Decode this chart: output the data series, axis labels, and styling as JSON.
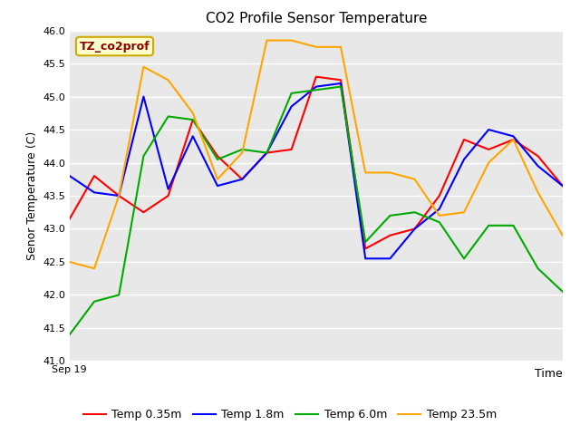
{
  "title": "CO2 Profile Sensor Temperature",
  "ylabel": "Senor Temperature (C)",
  "xlabel": "Time",
  "xlim": [
    0,
    20
  ],
  "ylim": [
    41.0,
    46.0
  ],
  "yticks": [
    41.0,
    41.5,
    42.0,
    42.5,
    43.0,
    43.5,
    44.0,
    44.5,
    45.0,
    45.5,
    46.0
  ],
  "xticklabel": "Sep 19",
  "annotation": "TZ_co2prof",
  "annotation_color": "#8B0000",
  "annotation_bg": "#FFFFCC",
  "annotation_border": "#CCAA00",
  "fig_bg": "#FFFFFF",
  "plot_bg": "#E8E8E8",
  "grid_color": "#FFFFFF",
  "series": {
    "temp_035m": {
      "label": "Temp 0.35m",
      "color": "#FF0000",
      "x": [
        0,
        1,
        2,
        3,
        4,
        5,
        6,
        7,
        8,
        9,
        10,
        11,
        12,
        13,
        14,
        15,
        16,
        17,
        18,
        19,
        20
      ],
      "y": [
        43.15,
        43.8,
        43.5,
        43.25,
        43.5,
        44.65,
        44.1,
        43.75,
        44.15,
        44.2,
        45.3,
        45.25,
        42.7,
        42.9,
        43.0,
        43.5,
        44.35,
        44.2,
        44.35,
        44.1,
        43.65
      ]
    },
    "temp_18m": {
      "label": "Temp 1.8m",
      "color": "#0000FF",
      "x": [
        0,
        1,
        2,
        3,
        4,
        5,
        6,
        7,
        8,
        9,
        10,
        11,
        12,
        13,
        14,
        15,
        16,
        17,
        18,
        19,
        20
      ],
      "y": [
        43.8,
        43.55,
        43.5,
        45.0,
        43.6,
        44.4,
        43.65,
        43.75,
        44.15,
        44.85,
        45.15,
        45.2,
        42.55,
        42.55,
        43.0,
        43.3,
        44.05,
        44.5,
        44.4,
        43.95,
        43.65
      ]
    },
    "temp_60m": {
      "label": "Temp 6.0m",
      "color": "#00AA00",
      "x": [
        0,
        1,
        2,
        3,
        4,
        5,
        6,
        7,
        8,
        9,
        10,
        11,
        12,
        13,
        14,
        15,
        16,
        17,
        18,
        19,
        20
      ],
      "y": [
        41.4,
        41.9,
        42.0,
        44.1,
        44.7,
        44.65,
        44.05,
        44.2,
        44.15,
        45.05,
        45.1,
        45.15,
        42.8,
        43.2,
        43.25,
        43.1,
        42.55,
        43.05,
        43.05,
        42.4,
        42.05
      ]
    },
    "temp_235m": {
      "label": "Temp 23.5m",
      "color": "#FFA500",
      "x": [
        0,
        1,
        2,
        3,
        4,
        5,
        6,
        7,
        8,
        9,
        10,
        11,
        12,
        13,
        14,
        15,
        16,
        17,
        18,
        19,
        20
      ],
      "y": [
        42.5,
        42.4,
        43.5,
        45.45,
        45.25,
        44.75,
        43.75,
        44.15,
        45.85,
        45.85,
        45.75,
        45.75,
        43.85,
        43.85,
        43.75,
        43.2,
        43.25,
        44.0,
        44.35,
        43.55,
        42.9
      ]
    }
  }
}
